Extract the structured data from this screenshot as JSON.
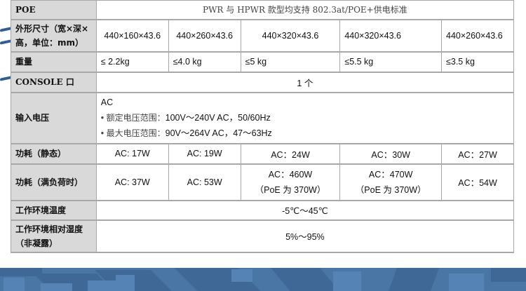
{
  "rows": {
    "poe": {
      "label": "POE",
      "value": "PWR 与 HPWR 款型均支持 802.3at/POE+供电标准"
    },
    "dims": {
      "label": "外形尺寸（宽×深×高，单位：mm）",
      "values": [
        "440×160×43.6",
        "440×260×43.6",
        "440×320×43.6",
        "440×320×43.6",
        "440×260×43.6"
      ]
    },
    "weight": {
      "label": "重量",
      "values": [
        "≤ 2.2kg",
        "≤4.0 kg",
        "≤5 kg",
        "≤5.5 kg",
        "≤3.5 kg"
      ]
    },
    "console": {
      "label": "CONSOLE 口",
      "value": "1 个"
    },
    "input": {
      "label": "输入电压",
      "line1": "AC",
      "bullet": "•",
      "rated_label": "额定电压范围：",
      "rated_value": "100V～240V AC，50/60Hz",
      "max_label": "最大电压范围：",
      "max_value": "90V～264V AC，47～63Hz"
    },
    "static": {
      "label": "功耗（静态）",
      "values": [
        "AC: 17W",
        "AC: 19W",
        "AC：24W",
        "AC：30W",
        "AC：27W"
      ]
    },
    "full": {
      "label": "功耗（满负荷时）",
      "values": [
        "AC: 37W",
        "AC: 53W",
        "AC：460W",
        "AC：470W",
        "AC：54W"
      ],
      "notes": [
        "（PoE 为 370W）",
        "（PoE 为 370W）"
      ]
    },
    "temp": {
      "label": "工作环境温度",
      "value": "-5℃～45℃"
    },
    "humidity": {
      "label": "工作环境相对湿度（非凝露）",
      "value": "5%～95%"
    }
  },
  "colors": {
    "label_bg": "#d9d9d9",
    "band": "#4a76a6"
  }
}
